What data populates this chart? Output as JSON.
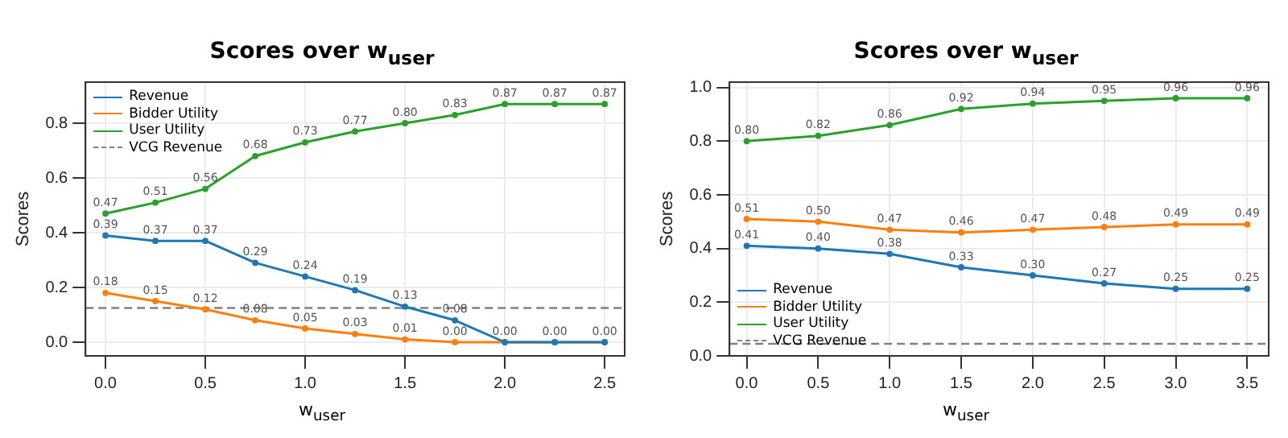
{
  "chart_data": [
    {
      "type": "line",
      "title": "Scores over w$_{user}$",
      "xlabel": "w$_{user}$",
      "ylabel": "Scores",
      "x": [
        0,
        0.25,
        0.5,
        0.75,
        1,
        1.25,
        1.5,
        1.75,
        2,
        2.25,
        2.5
      ],
      "series": [
        {
          "name": "Revenue",
          "color": "#1f77b4",
          "values": [
            0.39,
            0.37,
            0.37,
            0.29,
            0.24,
            0.19,
            0.13,
            0.08,
            0.0,
            0.0,
            0.0
          ],
          "value_labels": [
            "0.39",
            "0.37",
            "0.37",
            "0.29",
            "0.24",
            "0.19",
            "0.13",
            "0.08",
            null,
            null,
            null
          ]
        },
        {
          "name": "Bidder Utility",
          "color": "#ff7f0e",
          "values": [
            0.18,
            0.15,
            0.12,
            0.08,
            0.05,
            0.03,
            0.01,
            0.0,
            0.0,
            0.0,
            0.0
          ],
          "value_labels": [
            "0.18",
            "0.15",
            "0.12",
            "0.08",
            "0.05",
            "0.03",
            "0.01",
            "0.00",
            "0.00",
            "0.00",
            "0.00"
          ]
        },
        {
          "name": "User Utility",
          "color": "#2ca02c",
          "values": [
            0.47,
            0.51,
            0.56,
            0.68,
            0.73,
            0.77,
            0.8,
            0.83,
            0.87,
            0.87,
            0.87
          ],
          "value_labels": [
            "0.47",
            "0.51",
            "0.56",
            "0.68",
            "0.73",
            "0.77",
            "0.80",
            "0.83",
            "0.87",
            "0.87",
            "0.87"
          ]
        }
      ],
      "ref_lines": [
        {
          "axis": "y",
          "value": 0.125,
          "label": "VCG Revenue",
          "color": "#808080",
          "line_style": "dashed"
        }
      ],
      "xlim": [
        -0.1,
        2.6
      ],
      "xticks": [
        {
          "value": 0,
          "label": "0.0"
        },
        {
          "value": 0.5,
          "label": "0.5"
        },
        {
          "value": 1,
          "label": "1.0"
        },
        {
          "value": 1.5,
          "label": "1.5"
        },
        {
          "value": 2,
          "label": "2.0"
        },
        {
          "value": 2.5,
          "label": "2.5"
        }
      ],
      "ylim": [
        -0.05,
        0.95
      ],
      "yticks": [
        {
          "value": 0,
          "label": "0.0"
        },
        {
          "value": 0.2,
          "label": "0.2"
        },
        {
          "value": 0.4,
          "label": "0.4"
        },
        {
          "value": 0.6,
          "label": "0.6"
        },
        {
          "value": 0.8,
          "label": "0.8"
        }
      ],
      "grid": true,
      "legend": "top left",
      "marker": "circle",
      "line_style": "solid"
    },
    {
      "type": "line",
      "title": "Scores over w$_{user}$",
      "xlabel": "w$_{user}$",
      "ylabel": "Scores",
      "x": [
        0,
        0.5,
        1,
        1.5,
        2,
        2.5,
        3,
        3.5
      ],
      "series": [
        {
          "name": "Revenue",
          "color": "#1f77b4",
          "values": [
            0.41,
            0.4,
            0.38,
            0.33,
            0.3,
            0.27,
            0.25,
            0.25
          ],
          "value_labels": [
            "0.41",
            "0.40",
            "0.38",
            "0.33",
            "0.30",
            "0.27",
            "0.25",
            "0.25"
          ]
        },
        {
          "name": "Bidder Utility",
          "color": "#ff7f0e",
          "values": [
            0.51,
            0.5,
            0.47,
            0.46,
            0.47,
            0.48,
            0.49,
            0.49
          ],
          "value_labels": [
            "0.51",
            "0.50",
            "0.47",
            "0.46",
            "0.47",
            "0.48",
            "0.49",
            "0.49"
          ]
        },
        {
          "name": "User Utility",
          "color": "#2ca02c",
          "values": [
            0.8,
            0.82,
            0.86,
            0.92,
            0.94,
            0.95,
            0.96,
            0.96
          ],
          "value_labels": [
            "0.80",
            "0.82",
            "0.86",
            "0.92",
            "0.94",
            "0.95",
            "0.96",
            "0.96"
          ]
        }
      ],
      "ref_lines": [
        {
          "axis": "y",
          "value": 0.045,
          "label": "VCG Revenue",
          "color": "#808080",
          "line_style": "dashed"
        }
      ],
      "xlim": [
        -0.12,
        3.65
      ],
      "xticks": [
        {
          "value": 0,
          "label": "0.0"
        },
        {
          "value": 0.5,
          "label": "0.5"
        },
        {
          "value": 1,
          "label": "1.0"
        },
        {
          "value": 1.5,
          "label": "1.5"
        },
        {
          "value": 2,
          "label": "2.0"
        },
        {
          "value": 2.5,
          "label": "2.5"
        },
        {
          "value": 3,
          "label": "3.0"
        },
        {
          "value": 3.5,
          "label": "3.5"
        }
      ],
      "ylim": [
        0,
        1.02
      ],
      "yticks": [
        {
          "value": 0,
          "label": "0.0"
        },
        {
          "value": 0.2,
          "label": "0.2"
        },
        {
          "value": 0.4,
          "label": "0.4"
        },
        {
          "value": 0.6,
          "label": "0.6"
        },
        {
          "value": 0.8,
          "label": "0.8"
        },
        {
          "value": 1,
          "label": "1.0"
        }
      ],
      "grid": true,
      "legend": "bottom left",
      "marker": "circle",
      "line_style": "solid"
    }
  ]
}
